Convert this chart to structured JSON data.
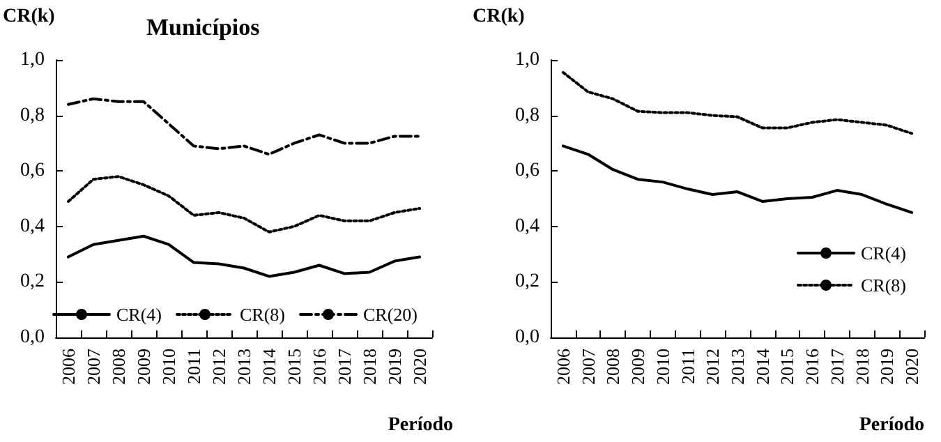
{
  "chart_data": [
    {
      "type": "line",
      "title": "Municípios",
      "xlabel": "Período",
      "ylabel": "CR(k)",
      "categories": [
        "2006",
        "2007",
        "2008",
        "2009",
        "2010",
        "2011",
        "2012",
        "2013",
        "2014",
        "2015",
        "2016",
        "2017",
        "2018",
        "2019",
        "2020"
      ],
      "series": [
        {
          "name": "CR(4)",
          "color": "#000000",
          "line_style": "solid",
          "values": [
            0.29,
            0.335,
            0.35,
            0.365,
            0.335,
            0.27,
            0.265,
            0.25,
            0.22,
            0.235,
            0.26,
            0.23,
            0.235,
            0.275,
            0.29
          ]
        },
        {
          "name": "CR(8)",
          "color": "#000000",
          "line_style": "dotted",
          "values": [
            0.49,
            0.57,
            0.58,
            0.55,
            0.51,
            0.44,
            0.45,
            0.43,
            0.38,
            0.4,
            0.44,
            0.42,
            0.42,
            0.45,
            0.465
          ]
        },
        {
          "name": "CR(20)",
          "color": "#000000",
          "line_style": "dashed",
          "values": [
            0.84,
            0.86,
            0.85,
            0.85,
            0.77,
            0.69,
            0.68,
            0.69,
            0.66,
            0.7,
            0.73,
            0.7,
            0.7,
            0.725,
            0.725
          ]
        }
      ],
      "ylim": [
        0,
        1
      ],
      "yticks": [
        {
          "value": 0,
          "label": "0,0"
        },
        {
          "value": 0.2,
          "label": "0,2"
        },
        {
          "value": 0.4,
          "label": "0,4"
        },
        {
          "value": 0.6,
          "label": "0,6"
        },
        {
          "value": 0.8,
          "label": "0,8"
        },
        {
          "value": 1,
          "label": "1,0"
        }
      ],
      "grid": false,
      "legend": "bottom",
      "marker": "none"
    },
    {
      "type": "line",
      "xlabel": "Período",
      "ylabel": "CR(k)",
      "categories": [
        "2006",
        "2007",
        "2008",
        "2009",
        "2010",
        "2011",
        "2012",
        "2013",
        "2014",
        "2015",
        "2016",
        "2017",
        "2018",
        "2019",
        "2020"
      ],
      "series": [
        {
          "name": "CR(4)",
          "color": "#000000",
          "line_style": "solid",
          "values": [
            0.69,
            0.66,
            0.605,
            0.57,
            0.56,
            0.535,
            0.515,
            0.525,
            0.49,
            0.5,
            0.505,
            0.53,
            0.515,
            0.48,
            0.45
          ]
        },
        {
          "name": "CR(8)",
          "color": "#000000",
          "line_style": "dotted",
          "values": [
            0.955,
            0.885,
            0.86,
            0.815,
            0.81,
            0.81,
            0.8,
            0.795,
            0.755,
            0.755,
            0.775,
            0.785,
            0.775,
            0.765,
            0.735
          ]
        }
      ],
      "ylim": [
        0,
        1
      ],
      "yticks": [
        {
          "value": 0,
          "label": "0,0"
        },
        {
          "value": 0.2,
          "label": "0,2"
        },
        {
          "value": 0.4,
          "label": "0,4"
        },
        {
          "value": 0.6,
          "label": "0,6"
        },
        {
          "value": 0.8,
          "label": "0,8"
        },
        {
          "value": 1,
          "label": "1,0"
        }
      ],
      "grid": false,
      "legend": "right",
      "marker": "none"
    }
  ]
}
